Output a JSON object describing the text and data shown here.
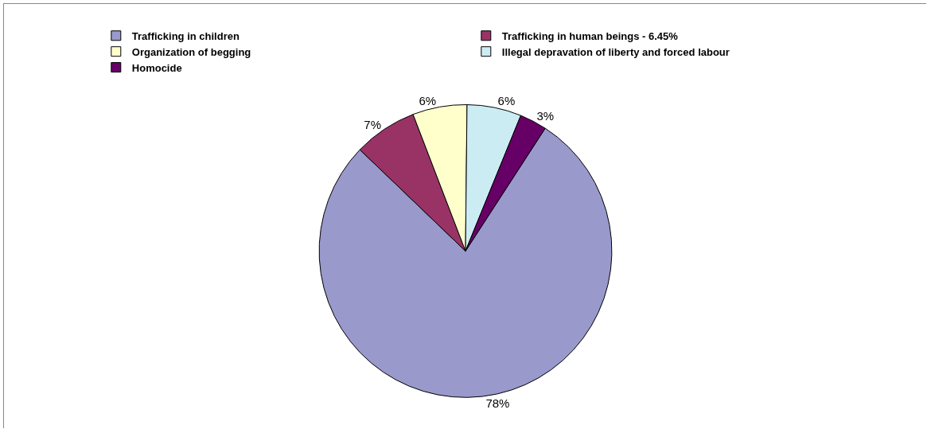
{
  "chart_data": {
    "type": "pie",
    "categories": [
      "Trafficking in children",
      "Trafficking in human beings - 6.45%",
      "Organization of begging",
      "Illegal depravation of liberty and forced labour",
      "Homocide"
    ],
    "values": [
      78,
      7,
      6,
      6,
      3
    ],
    "value_labels": [
      "78%",
      "7%",
      "6%",
      "6%",
      "3%"
    ],
    "colors": [
      "#9999cc",
      "#993366",
      "#ffffcc",
      "#ccecf4",
      "#660066"
    ],
    "legend": "top"
  }
}
